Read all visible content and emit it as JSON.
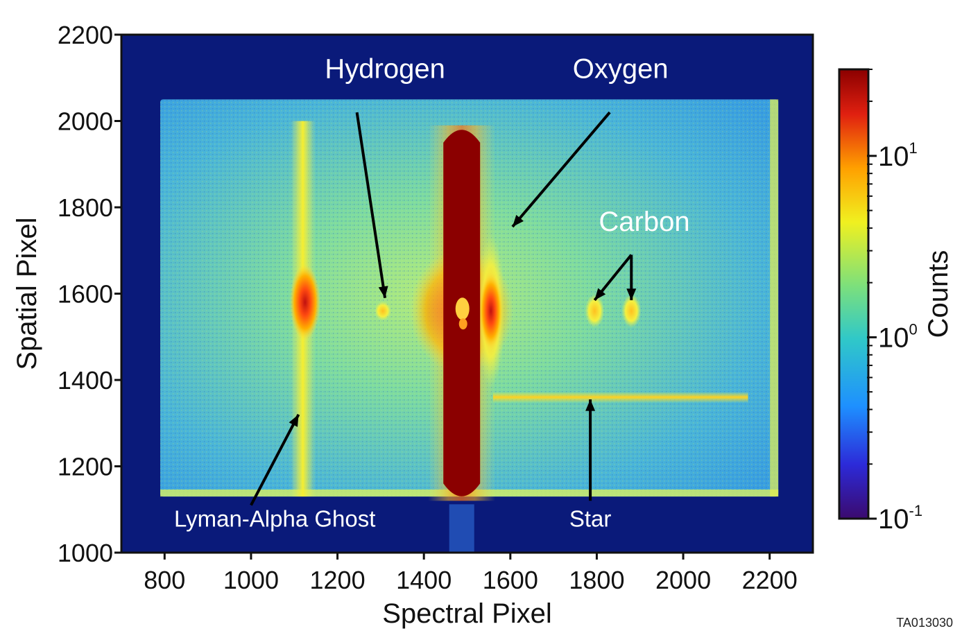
{
  "figure_id": "TA013030",
  "chart_data": {
    "type": "heatmap",
    "title": "",
    "xlabel": "Spectral Pixel",
    "ylabel": "Spatial Pixel",
    "xlim": [
      700,
      2300
    ],
    "ylim": [
      1000,
      2200
    ],
    "x_ticks": [
      800,
      1000,
      1200,
      1400,
      1600,
      1800,
      2000,
      2200
    ],
    "y_ticks": [
      1000,
      1200,
      1400,
      1600,
      1800,
      2000,
      2200
    ],
    "colorbar": {
      "label": "Counts",
      "scale": "log",
      "range": [
        0.1,
        30
      ],
      "ticks": [
        {
          "value": 0.1,
          "base": "10",
          "exp": "-1"
        },
        {
          "value": 1,
          "base": "10",
          "exp": "0"
        },
        {
          "value": 10,
          "base": "10",
          "exp": "1"
        }
      ],
      "colors": [
        "#3b0a6e",
        "#2c2ad8",
        "#1e90ff",
        "#30c8c8",
        "#7ee07a",
        "#f0f020",
        "#ffa000",
        "#e02010",
        "#8b0000"
      ]
    },
    "detector_region": {
      "x": [
        790,
        2220
      ],
      "y": [
        1130,
        2050
      ],
      "level": 1
    },
    "features": [
      {
        "name": "Lyman-Alpha ghost column",
        "x": 1120,
        "y_range": [
          1130,
          2000
        ],
        "level": 3
      },
      {
        "name": "Lyman-Alpha ghost core",
        "x": 1125,
        "y": 1580,
        "level": 12
      },
      {
        "name": "Hydrogen line",
        "x": 1305,
        "y": 1560,
        "level": 4
      },
      {
        "name": "Central saturated line",
        "x_range": [
          1445,
          1530
        ],
        "y_range": [
          1120,
          1990
        ],
        "level": 30
      },
      {
        "name": "Oxygen line",
        "x": 1555,
        "y": 1560,
        "level": 15
      },
      {
        "name": "Carbon line 1",
        "x": 1795,
        "y": 1560,
        "level": 4
      },
      {
        "name": "Carbon line 2",
        "x": 1880,
        "y": 1560,
        "level": 4
      },
      {
        "name": "Star trace",
        "x_range": [
          1560,
          2150
        ],
        "y": 1360,
        "level": 5
      }
    ],
    "annotations": [
      {
        "id": "hydrogen",
        "text": "Hydrogen",
        "label_at": [
          1310,
          2100
        ],
        "arrow_from": [
          1245,
          2020
        ],
        "arrow_to": [
          1310,
          1590
        ]
      },
      {
        "id": "oxygen",
        "text": "Oxygen",
        "label_at": [
          1855,
          2100
        ],
        "arrow_from": [
          1830,
          2020
        ],
        "arrow_to": [
          1605,
          1755
        ]
      },
      {
        "id": "carbon",
        "text": "Carbon",
        "label_at": [
          1910,
          1745
        ],
        "arrow_from": [
          1880,
          1690
        ],
        "arrow_to": [
          1795,
          1585
        ],
        "arrow2_to": [
          1880,
          1585
        ]
      },
      {
        "id": "lyman",
        "text": "Lyman-Alpha Ghost",
        "label_at": [
          1055,
          1060
        ],
        "arrow_from": [
          1000,
          1110
        ],
        "arrow_to": [
          1110,
          1320
        ]
      },
      {
        "id": "star",
        "text": "Star",
        "label_at": [
          1785,
          1060
        ],
        "arrow_from": [
          1785,
          1120
        ],
        "arrow_to": [
          1785,
          1355
        ]
      }
    ]
  }
}
